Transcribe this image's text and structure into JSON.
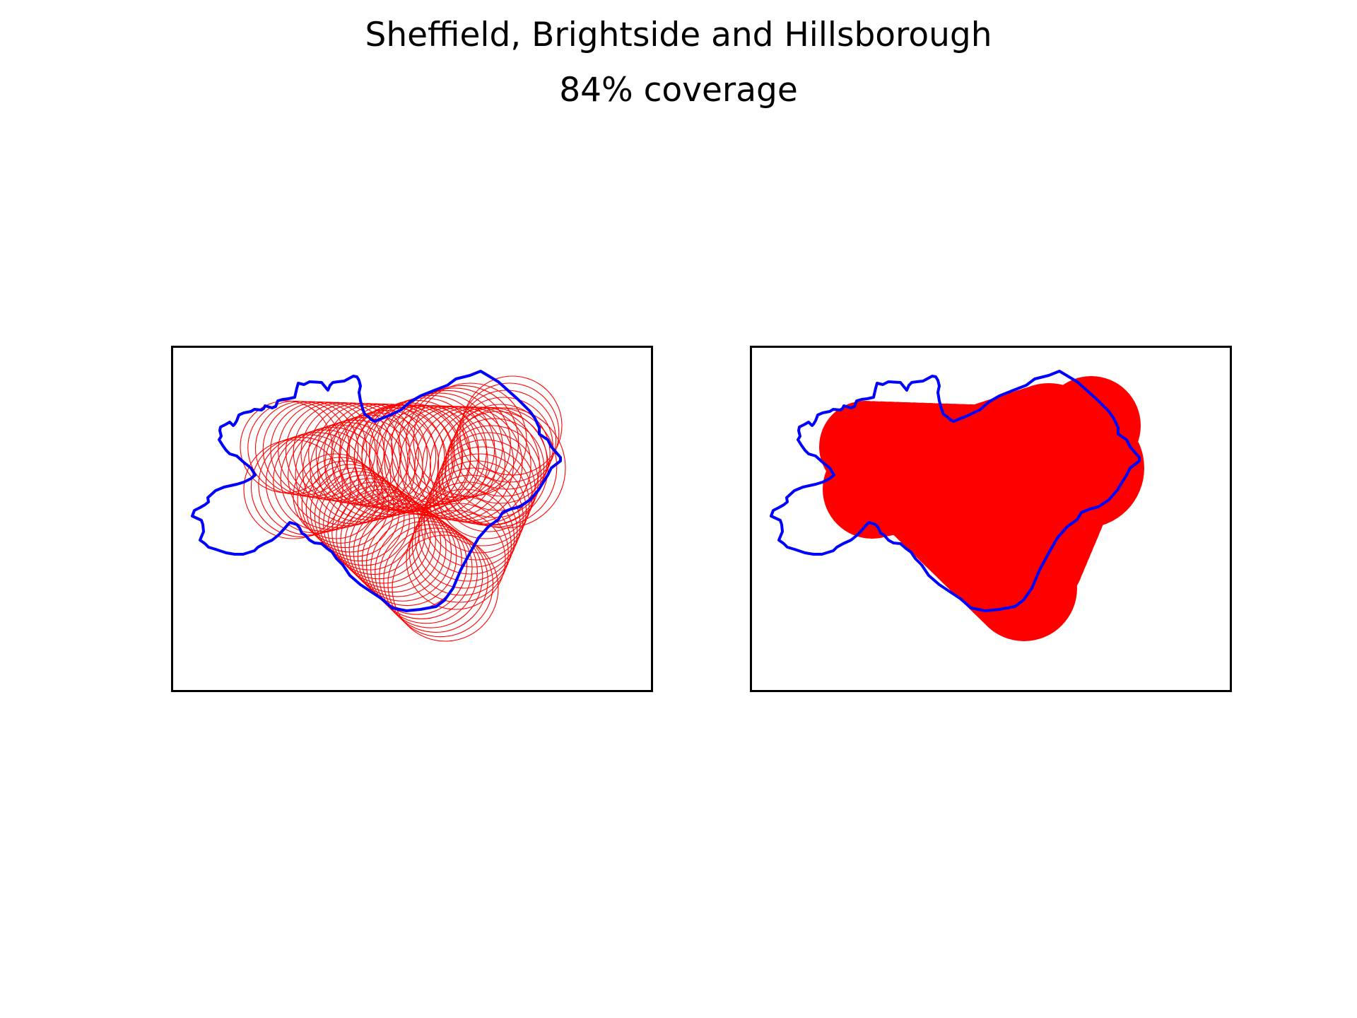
{
  "figure": {
    "title": "Sheffield, Brightside and Hillsborough",
    "subtitle": "84% coverage"
  },
  "colors": {
    "boundary": "#0000ff",
    "coverage": "#ff0000",
    "frame": "#000000",
    "background": "#ffffff"
  },
  "panels": [
    {
      "name": "individual-coverage-circles",
      "style": "outlined-circles"
    },
    {
      "name": "merged-coverage-area",
      "style": "filled-union"
    }
  ],
  "coverage_percent": 84
}
